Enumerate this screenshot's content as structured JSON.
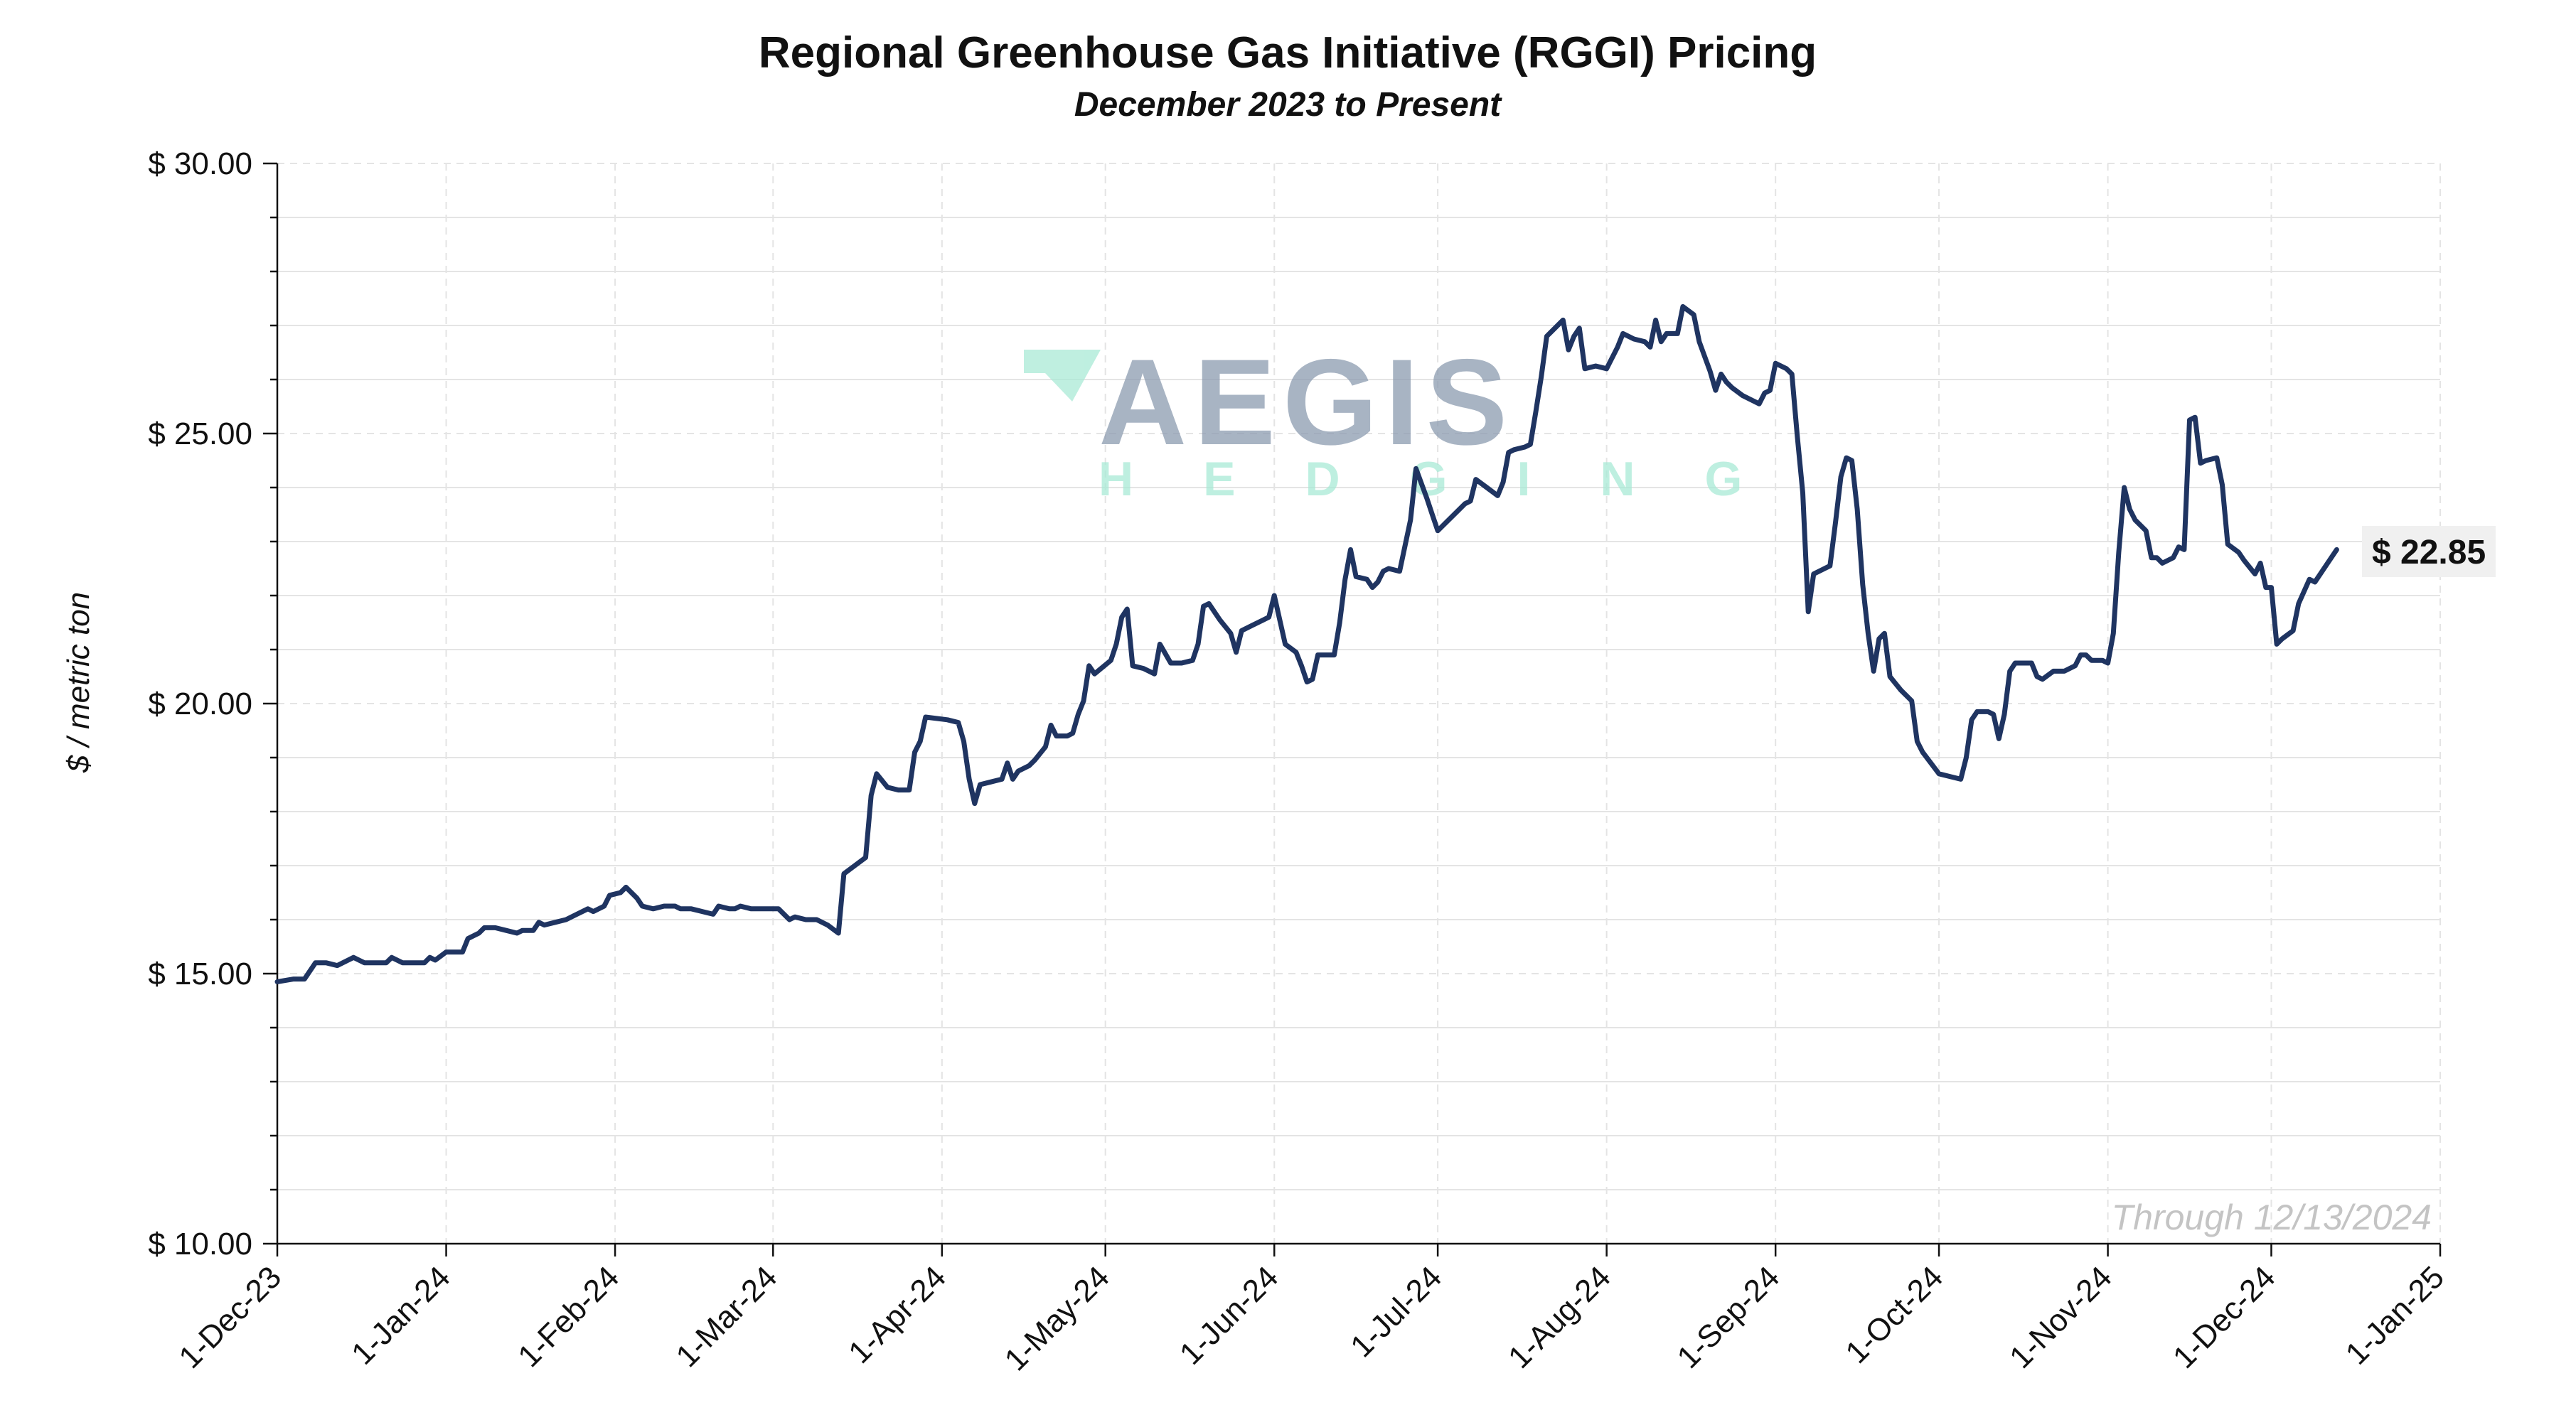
{
  "chart_data": {
    "type": "line",
    "title": "Regional Greenhouse Gas Initiative (RGGI) Pricing",
    "subtitle": "December 2023 to Present",
    "ylabel": "$ / metric ton",
    "xlabel": "",
    "ylim": [
      10,
      30
    ],
    "xlim": [
      "2023-12-01",
      "2025-01-01"
    ],
    "y_ticks": [
      10,
      15,
      20,
      25,
      30
    ],
    "y_tick_labels": [
      "$ 10.00",
      "$ 15.00",
      "$ 20.00",
      "$ 25.00",
      "$ 30.00"
    ],
    "x_ticks": [
      "2023-12-01",
      "2024-01-01",
      "2024-02-01",
      "2024-03-01",
      "2024-04-01",
      "2024-05-01",
      "2024-06-01",
      "2024-07-01",
      "2024-08-01",
      "2024-09-01",
      "2024-10-01",
      "2024-11-01",
      "2024-12-01",
      "2025-01-01"
    ],
    "x_tick_labels": [
      "1-Dec-23",
      "1-Jan-24",
      "1-Feb-24",
      "1-Mar-24",
      "1-Apr-24",
      "1-May-24",
      "1-Jun-24",
      "1-Jul-24",
      "1-Aug-24",
      "1-Sep-24",
      "1-Oct-24",
      "1-Nov-24",
      "1-Dec-24",
      "1-Jan-25"
    ],
    "grid": true,
    "line_color": "#1f3461",
    "series": [
      {
        "points": [
          [
            "2023-12-01",
            14.85
          ],
          [
            "2023-12-04",
            14.9
          ],
          [
            "2023-12-06",
            14.9
          ],
          [
            "2023-12-08",
            15.2
          ],
          [
            "2023-12-10",
            15.2
          ],
          [
            "2023-12-12",
            15.15
          ],
          [
            "2023-12-14",
            15.25
          ],
          [
            "2023-12-15",
            15.3
          ],
          [
            "2023-12-17",
            15.2
          ],
          [
            "2023-12-19",
            15.2
          ],
          [
            "2023-12-21",
            15.2
          ],
          [
            "2023-12-22",
            15.3
          ],
          [
            "2023-12-24",
            15.2
          ],
          [
            "2023-12-26",
            15.2
          ],
          [
            "2023-12-28",
            15.2
          ],
          [
            "2023-12-29",
            15.3
          ],
          [
            "2023-12-30",
            15.25
          ],
          [
            "2024-01-01",
            15.4
          ],
          [
            "2024-01-03",
            15.4
          ],
          [
            "2024-01-04",
            15.4
          ],
          [
            "2024-01-05",
            15.65
          ],
          [
            "2024-01-07",
            15.75
          ],
          [
            "2024-01-08",
            15.85
          ],
          [
            "2024-01-10",
            15.85
          ],
          [
            "2024-01-12",
            15.8
          ],
          [
            "2024-01-14",
            15.75
          ],
          [
            "2024-01-15",
            15.8
          ],
          [
            "2024-01-17",
            15.8
          ],
          [
            "2024-01-18",
            15.95
          ],
          [
            "2024-01-19",
            15.9
          ],
          [
            "2024-01-21",
            15.95
          ],
          [
            "2024-01-23",
            16.0
          ],
          [
            "2024-01-25",
            16.1
          ],
          [
            "2024-01-27",
            16.2
          ],
          [
            "2024-01-28",
            16.15
          ],
          [
            "2024-01-30",
            16.25
          ],
          [
            "2024-01-31",
            16.45
          ],
          [
            "2024-02-02",
            16.5
          ],
          [
            "2024-02-03",
            16.6
          ],
          [
            "2024-02-05",
            16.4
          ],
          [
            "2024-02-06",
            16.25
          ],
          [
            "2024-02-08",
            16.2
          ],
          [
            "2024-02-10",
            16.25
          ],
          [
            "2024-02-12",
            16.25
          ],
          [
            "2024-02-13",
            16.2
          ],
          [
            "2024-02-15",
            16.2
          ],
          [
            "2024-02-17",
            16.15
          ],
          [
            "2024-02-19",
            16.1
          ],
          [
            "2024-02-20",
            16.25
          ],
          [
            "2024-02-22",
            16.2
          ],
          [
            "2024-02-23",
            16.2
          ],
          [
            "2024-02-24",
            16.25
          ],
          [
            "2024-02-26",
            16.2
          ],
          [
            "2024-02-28",
            16.2
          ],
          [
            "2024-02-29",
            16.2
          ],
          [
            "2024-03-02",
            16.2
          ],
          [
            "2024-03-04",
            16.0
          ],
          [
            "2024-03-05",
            16.05
          ],
          [
            "2024-03-07",
            16.0
          ],
          [
            "2024-03-09",
            16.0
          ],
          [
            "2024-03-11",
            15.9
          ],
          [
            "2024-03-13",
            15.75
          ],
          [
            "2024-03-14",
            16.85
          ],
          [
            "2024-03-16",
            17.0
          ],
          [
            "2024-03-18",
            17.15
          ],
          [
            "2024-03-19",
            18.3
          ],
          [
            "2024-03-20",
            18.7
          ],
          [
            "2024-03-22",
            18.45
          ],
          [
            "2024-03-24",
            18.4
          ],
          [
            "2024-03-26",
            18.4
          ],
          [
            "2024-03-27",
            19.1
          ],
          [
            "2024-03-28",
            19.3
          ],
          [
            "2024-03-29",
            19.75
          ],
          [
            "2024-04-02",
            19.7
          ],
          [
            "2024-04-04",
            19.65
          ],
          [
            "2024-04-05",
            19.3
          ],
          [
            "2024-04-06",
            18.6
          ],
          [
            "2024-04-07",
            18.15
          ],
          [
            "2024-04-08",
            18.5
          ],
          [
            "2024-04-10",
            18.55
          ],
          [
            "2024-04-12",
            18.6
          ],
          [
            "2024-04-13",
            18.9
          ],
          [
            "2024-04-14",
            18.6
          ],
          [
            "2024-04-15",
            18.75
          ],
          [
            "2024-04-17",
            18.85
          ],
          [
            "2024-04-18",
            18.95
          ],
          [
            "2024-04-20",
            19.2
          ],
          [
            "2024-04-21",
            19.6
          ],
          [
            "2024-04-22",
            19.4
          ],
          [
            "2024-04-24",
            19.4
          ],
          [
            "2024-04-25",
            19.45
          ],
          [
            "2024-04-26",
            19.8
          ],
          [
            "2024-04-27",
            20.05
          ],
          [
            "2024-04-28",
            20.7
          ],
          [
            "2024-04-29",
            20.55
          ],
          [
            "2024-05-02",
            20.8
          ],
          [
            "2024-05-03",
            21.1
          ],
          [
            "2024-05-04",
            21.6
          ],
          [
            "2024-05-05",
            21.75
          ],
          [
            "2024-05-06",
            20.7
          ],
          [
            "2024-05-08",
            20.65
          ],
          [
            "2024-05-10",
            20.55
          ],
          [
            "2024-05-11",
            21.1
          ],
          [
            "2024-05-13",
            20.75
          ],
          [
            "2024-05-15",
            20.75
          ],
          [
            "2024-05-17",
            20.8
          ],
          [
            "2024-05-18",
            21.1
          ],
          [
            "2024-05-19",
            21.8
          ],
          [
            "2024-05-20",
            21.85
          ],
          [
            "2024-05-22",
            21.55
          ],
          [
            "2024-05-24",
            21.3
          ],
          [
            "2024-05-25",
            20.95
          ],
          [
            "2024-05-26",
            21.35
          ],
          [
            "2024-05-28",
            21.45
          ],
          [
            "2024-05-30",
            21.55
          ],
          [
            "2024-05-31",
            21.6
          ],
          [
            "2024-06-01",
            22.0
          ],
          [
            "2024-06-03",
            21.1
          ],
          [
            "2024-06-05",
            20.95
          ],
          [
            "2024-06-06",
            20.7
          ],
          [
            "2024-06-07",
            20.4
          ],
          [
            "2024-06-08",
            20.45
          ],
          [
            "2024-06-09",
            20.9
          ],
          [
            "2024-06-11",
            20.9
          ],
          [
            "2024-06-12",
            20.9
          ],
          [
            "2024-06-13",
            21.5
          ],
          [
            "2024-06-14",
            22.3
          ],
          [
            "2024-06-15",
            22.85
          ],
          [
            "2024-06-16",
            22.35
          ],
          [
            "2024-06-18",
            22.3
          ],
          [
            "2024-06-19",
            22.15
          ],
          [
            "2024-06-20",
            22.25
          ],
          [
            "2024-06-21",
            22.45
          ],
          [
            "2024-06-22",
            22.5
          ],
          [
            "2024-06-24",
            22.45
          ],
          [
            "2024-06-26",
            23.4
          ],
          [
            "2024-06-27",
            24.35
          ],
          [
            "2024-06-29",
            23.8
          ],
          [
            "2024-06-30",
            23.5
          ],
          [
            "2024-07-01",
            23.2
          ],
          [
            "2024-07-03",
            23.4
          ],
          [
            "2024-07-05",
            23.6
          ],
          [
            "2024-07-06",
            23.7
          ],
          [
            "2024-07-07",
            23.75
          ],
          [
            "2024-07-08",
            24.15
          ],
          [
            "2024-07-10",
            24.0
          ],
          [
            "2024-07-12",
            23.85
          ],
          [
            "2024-07-13",
            24.1
          ],
          [
            "2024-07-14",
            24.65
          ],
          [
            "2024-07-15",
            24.7
          ],
          [
            "2024-07-17",
            24.75
          ],
          [
            "2024-07-18",
            24.8
          ],
          [
            "2024-07-19",
            25.4
          ],
          [
            "2024-07-20",
            26.05
          ],
          [
            "2024-07-21",
            26.8
          ],
          [
            "2024-07-22",
            26.9
          ],
          [
            "2024-07-24",
            27.1
          ],
          [
            "2024-07-25",
            26.55
          ],
          [
            "2024-07-26",
            26.8
          ],
          [
            "2024-07-27",
            26.95
          ],
          [
            "2024-07-28",
            26.2
          ],
          [
            "2024-07-30",
            26.25
          ],
          [
            "2024-08-01",
            26.2
          ],
          [
            "2024-08-03",
            26.6
          ],
          [
            "2024-08-04",
            26.85
          ],
          [
            "2024-08-06",
            26.75
          ],
          [
            "2024-08-08",
            26.7
          ],
          [
            "2024-08-09",
            26.6
          ],
          [
            "2024-08-10",
            27.1
          ],
          [
            "2024-08-11",
            26.7
          ],
          [
            "2024-08-12",
            26.85
          ],
          [
            "2024-08-14",
            26.85
          ],
          [
            "2024-08-15",
            27.35
          ],
          [
            "2024-08-17",
            27.2
          ],
          [
            "2024-08-18",
            26.7
          ],
          [
            "2024-08-20",
            26.15
          ],
          [
            "2024-08-21",
            25.8
          ],
          [
            "2024-08-22",
            26.1
          ],
          [
            "2024-08-23",
            25.95
          ],
          [
            "2024-08-24",
            25.85
          ],
          [
            "2024-08-26",
            25.7
          ],
          [
            "2024-08-28",
            25.6
          ],
          [
            "2024-08-29",
            25.55
          ],
          [
            "2024-08-30",
            25.75
          ],
          [
            "2024-08-31",
            25.8
          ],
          [
            "2024-09-01",
            26.3
          ],
          [
            "2024-09-03",
            26.2
          ],
          [
            "2024-09-04",
            26.1
          ],
          [
            "2024-09-05",
            24.95
          ],
          [
            "2024-09-06",
            23.9
          ],
          [
            "2024-09-07",
            21.7
          ],
          [
            "2024-09-08",
            22.4
          ],
          [
            "2024-09-10",
            22.5
          ],
          [
            "2024-09-11",
            22.55
          ],
          [
            "2024-09-12",
            23.35
          ],
          [
            "2024-09-13",
            24.2
          ],
          [
            "2024-09-14",
            24.55
          ],
          [
            "2024-09-15",
            24.5
          ],
          [
            "2024-09-16",
            23.6
          ],
          [
            "2024-09-17",
            22.2
          ],
          [
            "2024-09-18",
            21.3
          ],
          [
            "2024-09-19",
            20.6
          ],
          [
            "2024-09-20",
            21.2
          ],
          [
            "2024-09-21",
            21.3
          ],
          [
            "2024-09-22",
            20.5
          ],
          [
            "2024-09-24",
            20.25
          ],
          [
            "2024-09-26",
            20.05
          ],
          [
            "2024-09-27",
            19.3
          ],
          [
            "2024-09-28",
            19.1
          ],
          [
            "2024-10-01",
            18.7
          ],
          [
            "2024-10-03",
            18.65
          ],
          [
            "2024-10-05",
            18.6
          ],
          [
            "2024-10-06",
            19.0
          ],
          [
            "2024-10-07",
            19.7
          ],
          [
            "2024-10-08",
            19.85
          ],
          [
            "2024-10-10",
            19.85
          ],
          [
            "2024-10-11",
            19.8
          ],
          [
            "2024-10-12",
            19.35
          ],
          [
            "2024-10-13",
            19.8
          ],
          [
            "2024-10-14",
            20.6
          ],
          [
            "2024-10-15",
            20.75
          ],
          [
            "2024-10-17",
            20.75
          ],
          [
            "2024-10-18",
            20.75
          ],
          [
            "2024-10-19",
            20.5
          ],
          [
            "2024-10-20",
            20.45
          ],
          [
            "2024-10-22",
            20.6
          ],
          [
            "2024-10-24",
            20.6
          ],
          [
            "2024-10-26",
            20.7
          ],
          [
            "2024-10-27",
            20.9
          ],
          [
            "2024-10-28",
            20.9
          ],
          [
            "2024-10-29",
            20.8
          ],
          [
            "2024-10-31",
            20.8
          ],
          [
            "2024-11-01",
            20.75
          ],
          [
            "2024-11-02",
            21.3
          ],
          [
            "2024-11-03",
            22.8
          ],
          [
            "2024-11-04",
            24.0
          ],
          [
            "2024-11-05",
            23.6
          ],
          [
            "2024-11-06",
            23.4
          ],
          [
            "2024-11-08",
            23.2
          ],
          [
            "2024-11-09",
            22.7
          ],
          [
            "2024-11-10",
            22.7
          ],
          [
            "2024-11-11",
            22.6
          ],
          [
            "2024-11-13",
            22.7
          ],
          [
            "2024-11-14",
            22.9
          ],
          [
            "2024-11-15",
            22.85
          ],
          [
            "2024-11-16",
            25.25
          ],
          [
            "2024-11-17",
            25.3
          ],
          [
            "2024-11-18",
            24.45
          ],
          [
            "2024-11-19",
            24.5
          ],
          [
            "2024-11-21",
            24.55
          ],
          [
            "2024-11-22",
            24.05
          ],
          [
            "2024-11-23",
            22.95
          ],
          [
            "2024-11-25",
            22.8
          ],
          [
            "2024-11-26",
            22.65
          ],
          [
            "2024-11-28",
            22.4
          ],
          [
            "2024-11-29",
            22.6
          ],
          [
            "2024-11-30",
            22.15
          ],
          [
            "2024-12-01",
            22.15
          ],
          [
            "2024-12-02",
            21.1
          ],
          [
            "2024-12-03",
            21.2
          ],
          [
            "2024-12-05",
            21.35
          ],
          [
            "2024-12-06",
            21.85
          ],
          [
            "2024-12-08",
            22.3
          ],
          [
            "2024-12-09",
            22.25
          ],
          [
            "2024-12-11",
            22.55
          ],
          [
            "2024-12-13",
            22.85
          ]
        ]
      }
    ],
    "last_value_label": "$ 22.85",
    "annotation": "Through 12/13/2024"
  },
  "watermark": {
    "word": "AEGIS",
    "subword": "HEDGING",
    "word_color": "#8c9bb0",
    "subword_color": "#a9ead6",
    "mark_color": "#a9ead6"
  }
}
